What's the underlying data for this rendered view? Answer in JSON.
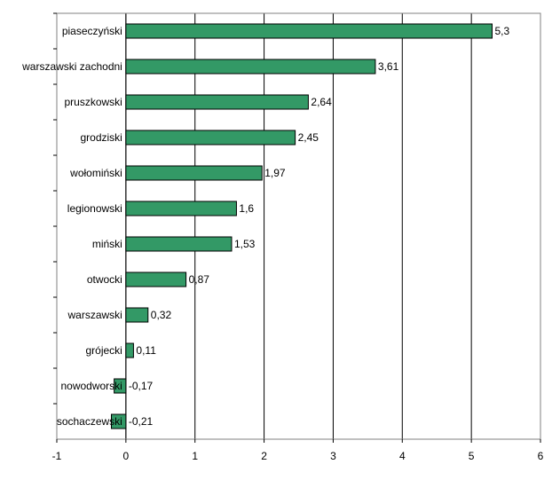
{
  "chart_data": {
    "type": "bar",
    "orientation": "horizontal",
    "categories": [
      "piaseczyński",
      "warszawski zachodni",
      "pruszkowski",
      "grodziski",
      "wołomiński",
      "legionowski",
      "miński",
      "otwocki",
      "warszawski",
      "grójecki",
      "nowodworski",
      "sochaczewski"
    ],
    "values": [
      5.3,
      3.61,
      2.64,
      2.45,
      1.97,
      1.6,
      1.53,
      0.87,
      0.32,
      0.11,
      -0.17,
      -0.21
    ],
    "data_labels": [
      "5,3",
      "3,61",
      "2,64",
      "2,45",
      "1,97",
      "1,6",
      "1,53",
      "0,87",
      "0,32",
      "0,11",
      "-0,17",
      "-0,21"
    ],
    "x_ticks": [
      "-1",
      "0",
      "1",
      "2",
      "3",
      "4",
      "5",
      "6"
    ],
    "xlim": [
      -1,
      6
    ],
    "grid": "vertical",
    "legend": "none",
    "colors": {
      "bar": "#339966",
      "bar_border": "#000000",
      "grid": "#000000"
    }
  }
}
